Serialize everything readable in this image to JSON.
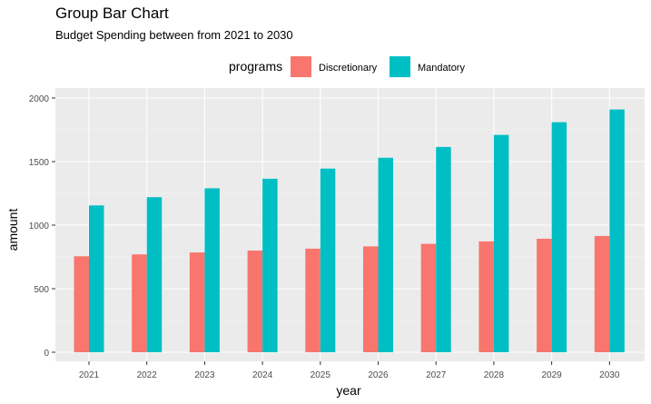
{
  "chart_data": {
    "type": "bar",
    "title": "Group Bar Chart",
    "subtitle": "Budget Spending between from 2021 to 2030",
    "xlabel": "year",
    "ylabel": "amount",
    "legend_title": "programs",
    "legend_position": "top",
    "grid": true,
    "ylim": [
      0,
      2000
    ],
    "yticks": [
      "0",
      "500",
      "1000",
      "1500",
      "2000"
    ],
    "categories": [
      "2021",
      "2022",
      "2023",
      "2024",
      "2025",
      "2026",
      "2027",
      "2028",
      "2029",
      "2030"
    ],
    "series": [
      {
        "name": "Discretionary",
        "color": "#F8766D",
        "values": [
          755,
          770,
          785,
          800,
          815,
          833,
          853,
          872,
          893,
          915
        ]
      },
      {
        "name": "Mandatory",
        "color": "#00BFC4",
        "values": [
          1155,
          1220,
          1290,
          1365,
          1445,
          1530,
          1615,
          1710,
          1810,
          1910
        ]
      }
    ]
  }
}
